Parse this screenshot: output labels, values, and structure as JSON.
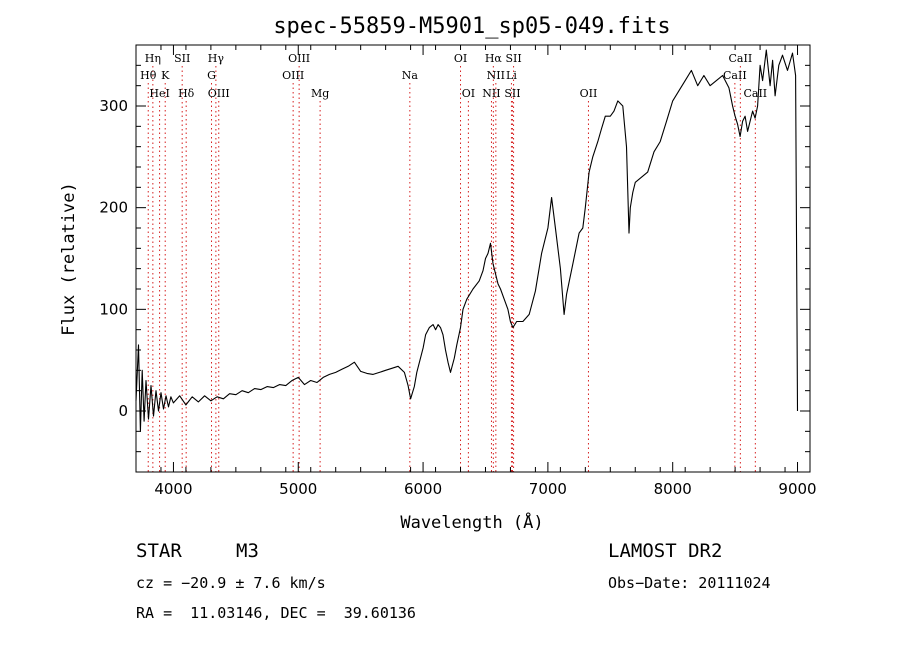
{
  "chart_data": {
    "type": "line",
    "title": "spec-55859-M5901_sp05-049.fits",
    "xlabel": "Wavelength (Å)",
    "ylabel": "Flux (relative)",
    "xlim": [
      3700,
      9100
    ],
    "ylim": [
      -60,
      360
    ],
    "xticks": [
      4000,
      5000,
      6000,
      7000,
      8000,
      9000
    ],
    "yticks": [
      0,
      100,
      200,
      300
    ],
    "grid": false,
    "series": [
      {
        "points": [
          [
            3700,
            10
          ],
          [
            3720,
            65
          ],
          [
            3735,
            -20
          ],
          [
            3750,
            40
          ],
          [
            3765,
            -10
          ],
          [
            3780,
            30
          ],
          [
            3800,
            -8
          ],
          [
            3820,
            25
          ],
          [
            3840,
            -5
          ],
          [
            3860,
            20
          ],
          [
            3880,
            0
          ],
          [
            3900,
            18
          ],
          [
            3920,
            2
          ],
          [
            3940,
            15
          ],
          [
            3960,
            4
          ],
          [
            3980,
            14
          ],
          [
            4000,
            8
          ],
          [
            4050,
            15
          ],
          [
            4100,
            6
          ],
          [
            4150,
            14
          ],
          [
            4200,
            9
          ],
          [
            4250,
            15
          ],
          [
            4300,
            10
          ],
          [
            4350,
            14
          ],
          [
            4400,
            12
          ],
          [
            4450,
            17
          ],
          [
            4500,
            16
          ],
          [
            4550,
            20
          ],
          [
            4600,
            18
          ],
          [
            4650,
            22
          ],
          [
            4700,
            21
          ],
          [
            4750,
            24
          ],
          [
            4800,
            23
          ],
          [
            4850,
            26
          ],
          [
            4900,
            25
          ],
          [
            4950,
            30
          ],
          [
            5000,
            33
          ],
          [
            5050,
            26
          ],
          [
            5100,
            30
          ],
          [
            5150,
            28
          ],
          [
            5200,
            33
          ],
          [
            5250,
            36
          ],
          [
            5300,
            38
          ],
          [
            5350,
            41
          ],
          [
            5400,
            44
          ],
          [
            5450,
            48
          ],
          [
            5500,
            39
          ],
          [
            5550,
            37
          ],
          [
            5600,
            36
          ],
          [
            5650,
            38
          ],
          [
            5700,
            40
          ],
          [
            5750,
            42
          ],
          [
            5800,
            44
          ],
          [
            5850,
            38
          ],
          [
            5880,
            25
          ],
          [
            5900,
            12
          ],
          [
            5930,
            24
          ],
          [
            5950,
            38
          ],
          [
            6000,
            62
          ],
          [
            6020,
            75
          ],
          [
            6050,
            82
          ],
          [
            6080,
            85
          ],
          [
            6100,
            80
          ],
          [
            6120,
            85
          ],
          [
            6140,
            82
          ],
          [
            6160,
            75
          ],
          [
            6180,
            60
          ],
          [
            6200,
            48
          ],
          [
            6220,
            38
          ],
          [
            6250,
            52
          ],
          [
            6270,
            65
          ],
          [
            6300,
            82
          ],
          [
            6320,
            100
          ],
          [
            6350,
            110
          ],
          [
            6400,
            120
          ],
          [
            6450,
            128
          ],
          [
            6480,
            138
          ],
          [
            6500,
            150
          ],
          [
            6520,
            155
          ],
          [
            6540,
            165
          ],
          [
            6560,
            145
          ],
          [
            6580,
            135
          ],
          [
            6600,
            125
          ],
          [
            6620,
            120
          ],
          [
            6650,
            110
          ],
          [
            6680,
            100
          ],
          [
            6700,
            88
          ],
          [
            6720,
            82
          ],
          [
            6750,
            88
          ],
          [
            6800,
            88
          ],
          [
            6850,
            95
          ],
          [
            6900,
            118
          ],
          [
            6950,
            155
          ],
          [
            7000,
            180
          ],
          [
            7030,
            210
          ],
          [
            7060,
            180
          ],
          [
            7100,
            140
          ],
          [
            7130,
            95
          ],
          [
            7150,
            115
          ],
          [
            7200,
            145
          ],
          [
            7250,
            175
          ],
          [
            7280,
            180
          ],
          [
            7300,
            200
          ],
          [
            7330,
            235
          ],
          [
            7360,
            250
          ],
          [
            7400,
            265
          ],
          [
            7430,
            278
          ],
          [
            7460,
            290
          ],
          [
            7500,
            290
          ],
          [
            7530,
            295
          ],
          [
            7560,
            305
          ],
          [
            7600,
            300
          ],
          [
            7630,
            260
          ],
          [
            7650,
            175
          ],
          [
            7660,
            200
          ],
          [
            7680,
            215
          ],
          [
            7700,
            225
          ],
          [
            7750,
            230
          ],
          [
            7800,
            235
          ],
          [
            7850,
            255
          ],
          [
            7900,
            265
          ],
          [
            7950,
            285
          ],
          [
            8000,
            305
          ],
          [
            8050,
            315
          ],
          [
            8100,
            325
          ],
          [
            8150,
            335
          ],
          [
            8200,
            320
          ],
          [
            8250,
            330
          ],
          [
            8300,
            320
          ],
          [
            8350,
            325
          ],
          [
            8400,
            330
          ],
          [
            8450,
            318
          ],
          [
            8480,
            300
          ],
          [
            8500,
            290
          ],
          [
            8520,
            282
          ],
          [
            8540,
            270
          ],
          [
            8560,
            285
          ],
          [
            8580,
            290
          ],
          [
            8600,
            275
          ],
          [
            8620,
            285
          ],
          [
            8640,
            295
          ],
          [
            8660,
            288
          ],
          [
            8680,
            300
          ],
          [
            8700,
            340
          ],
          [
            8720,
            325
          ],
          [
            8750,
            355
          ],
          [
            8780,
            320
          ],
          [
            8800,
            345
          ],
          [
            8820,
            310
          ],
          [
            8850,
            340
          ],
          [
            8880,
            350
          ],
          [
            8920,
            335
          ],
          [
            8960,
            352
          ],
          [
            8985,
            330
          ],
          [
            9000,
            0
          ]
        ]
      }
    ],
    "line_markers": [
      {
        "label": "Hη",
        "wl": 3835,
        "row": 0
      },
      {
        "label": "Hθ",
        "wl": 3798,
        "row": 1
      },
      {
        "label": "K",
        "wl": 3934,
        "row": 1
      },
      {
        "label": "HeI",
        "wl": 3889,
        "row": 2
      },
      {
        "label": "SII",
        "wl": 4070,
        "row": 0
      },
      {
        "label": "Hδ",
        "wl": 4102,
        "row": 2
      },
      {
        "label": "Hγ",
        "wl": 4340,
        "row": 0
      },
      {
        "label": "G",
        "wl": 4305,
        "row": 1
      },
      {
        "label": "OIII",
        "wl": 4363,
        "row": 2
      },
      {
        "label": "OIII",
        "wl": 5007,
        "row": 0
      },
      {
        "label": "OIII",
        "wl": 4959,
        "row": 1
      },
      {
        "label": "Mg",
        "wl": 5175,
        "row": 2
      },
      {
        "label": "Na",
        "wl": 5894,
        "row": 1
      },
      {
        "label": "OI",
        "wl": 6300,
        "row": 0
      },
      {
        "label": "OI",
        "wl": 6363,
        "row": 2
      },
      {
        "label": "Hα",
        "wl": 6563,
        "row": 0
      },
      {
        "label": "SII",
        "wl": 6725,
        "row": 0
      },
      {
        "label": "NII",
        "wl": 6583,
        "row": 1
      },
      {
        "label": "Li",
        "wl": 6708,
        "row": 1
      },
      {
        "label": "NII",
        "wl": 6548,
        "row": 2
      },
      {
        "label": "SII",
        "wl": 6716,
        "row": 2
      },
      {
        "label": "OII",
        "wl": 7325,
        "row": 2
      },
      {
        "label": "CaII",
        "wl": 8542,
        "row": 0
      },
      {
        "label": "CaII",
        "wl": 8498,
        "row": 1
      },
      {
        "label": "CaII",
        "wl": 8662,
        "row": 2
      }
    ],
    "line_marker_color": "#d62020"
  },
  "info": {
    "object_class": "STAR",
    "subclass": "M3",
    "survey": "LAMOST DR2",
    "cz": "cz = −20.9 ± 7.6 km/s",
    "obs_date": "Obs−Date: 20111024",
    "coords": "RA =  11.03146, DEC =  39.60136"
  }
}
